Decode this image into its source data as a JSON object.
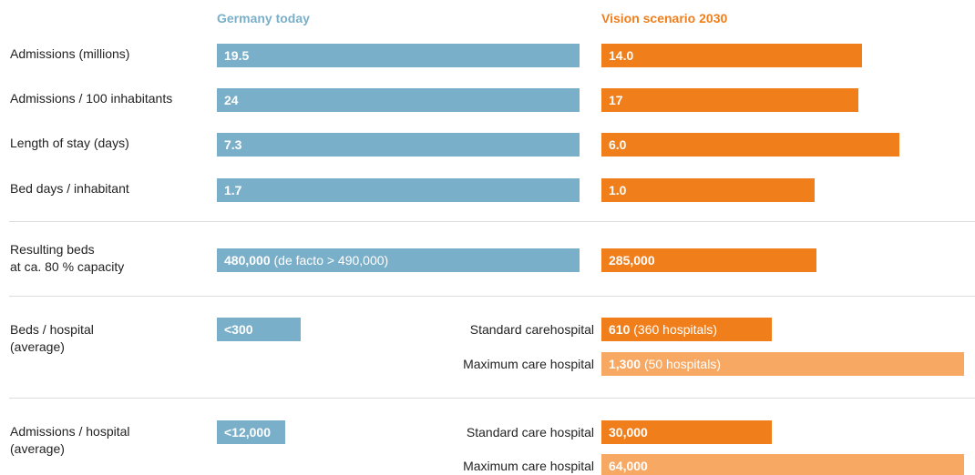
{
  "headers": {
    "today": "Germany today",
    "vision": "Vision scenario 2030"
  },
  "rows": [
    {
      "label": [
        "Admissions (millions)"
      ],
      "today": {
        "value": 19.5,
        "label": "19.5",
        "color": "#7aafca"
      },
      "vision": [
        {
          "value": 14,
          "label": "14.0",
          "color": "#f07e1b"
        }
      ]
    },
    {
      "label": [
        "Admissions / 100 inhabitants"
      ],
      "today": {
        "value": 24,
        "label": "24",
        "color": "#7aafca"
      },
      "vision": [
        {
          "value": 17,
          "label": "17",
          "color": "#f07e1b"
        }
      ]
    },
    {
      "label": [
        "Length of stay (days)"
      ],
      "today": {
        "value": 7.3,
        "label": "7.3",
        "color": "#7aafca"
      },
      "vision": [
        {
          "value": 6,
          "label": "6.0",
          "color": "#f07e1b"
        }
      ]
    },
    {
      "label": [
        "Bed days / inhabitant"
      ],
      "today": {
        "value": 1.7,
        "label": "1.7",
        "color": "#7aafca"
      },
      "vision": [
        {
          "value": 1,
          "label": "1.0",
          "color": "#f07e1b"
        }
      ]
    },
    {
      "label": [
        "Resulting beds",
        "at ca. 80 % capacity"
      ],
      "today": {
        "value": 480000,
        "label": "480,000",
        "note": "(de facto > 490,000)",
        "color": "#7aafca"
      },
      "vision": [
        {
          "value": 285000,
          "label": "285,000",
          "color": "#f07e1b"
        }
      ]
    },
    {
      "label": [
        "Beds / hospital",
        "(average)"
      ],
      "today": {
        "value": 300,
        "label": "<300",
        "color": "#7aafca"
      },
      "vision": [
        {
          "sublabel": "Standard carehospital",
          "value": 610,
          "label": "610",
          "note": "(360 hospitals)",
          "color": "#f07e1b"
        },
        {
          "sublabel": "Maximum care hospital",
          "value": 1300,
          "label": "1,300",
          "note": "(50 hospitals)",
          "color": "#f7a862"
        }
      ]
    },
    {
      "label": [
        "Admissions / hospital",
        "(average)"
      ],
      "today": {
        "value": 12000,
        "label": "<12,000",
        "color": "#7aafca"
      },
      "vision": [
        {
          "sublabel": "Standard care hospital",
          "value": 30000,
          "label": "30,000",
          "color": "#f07e1b"
        },
        {
          "sublabel": "Maximum care hospital",
          "value": 64000,
          "label": "64,000",
          "color": "#f7a862"
        }
      ]
    }
  ]
}
